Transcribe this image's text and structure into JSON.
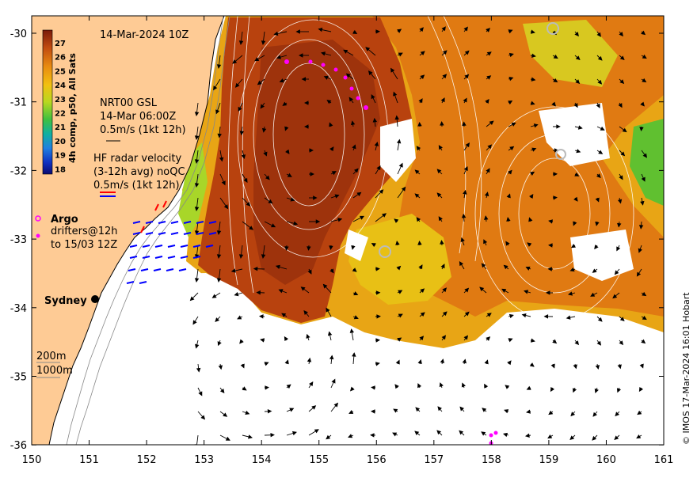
{
  "map": {
    "date_label": "14-Mar-2024 10Z",
    "colorbar": {
      "title": "4h comp, p50, All Sats",
      "ticks": [
        "27",
        "26",
        "25",
        "24",
        "23",
        "22",
        "21",
        "20",
        "19",
        "18"
      ]
    },
    "gsl": {
      "line1": "NRT00 GSL",
      "line2": "14-Mar 06:00Z",
      "line3": "0.5m/s (1kt 12h)"
    },
    "hf_radar": {
      "line1": "HF radar velocity",
      "line2": "(3-12h avg) noQC",
      "line3": "0.5m/s (1kt 12h)"
    },
    "argo_label": "Argo",
    "drifters": {
      "line1": "drifters@12h",
      "line2": "to 15/03 12Z"
    },
    "city": "Sydney",
    "isobaths": [
      "200m",
      "1000m"
    ],
    "credit": "© IMOS 17-Mar-2024 16:01 Hobart",
    "x_ticks": [
      "150",
      "151",
      "152",
      "153",
      "154",
      "155",
      "156",
      "157",
      "158",
      "159",
      "160",
      "161"
    ],
    "y_ticks": [
      "-30",
      "-31",
      "-32",
      "-33",
      "-34",
      "-35",
      "-36"
    ],
    "colors": {
      "land": "#fecb95",
      "sst_warm": "#b8420e",
      "sst_mid": "#e07a12",
      "sst_cool": "#e8c015",
      "sst_green": "#a8d629",
      "argo": "#ff00ff",
      "hf_red": "#ff0000",
      "hf_blue": "#0000ff"
    }
  }
}
